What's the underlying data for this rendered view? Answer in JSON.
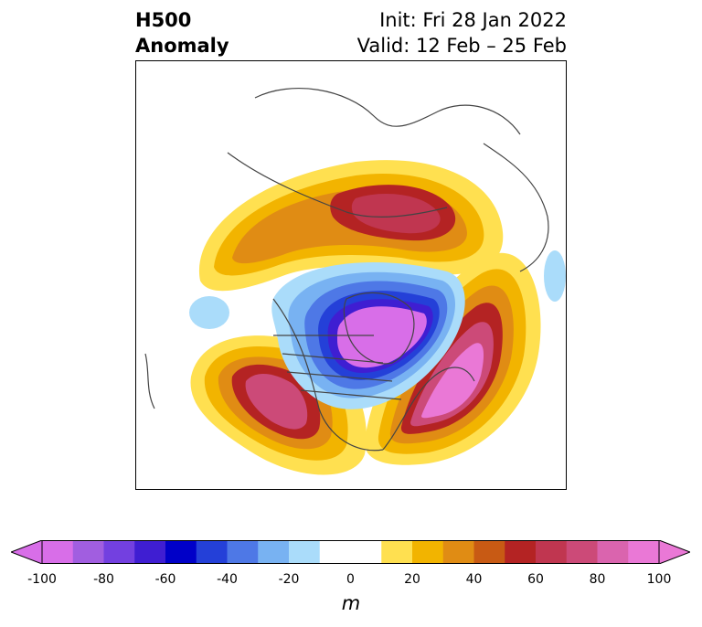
{
  "title": {
    "left_line1": "H500",
    "left_line2": "Anomaly",
    "right_line1": "Init: Fri 28 Jan 2022",
    "right_line2": "Valid: 12 Feb – 25 Feb"
  },
  "colorbar": {
    "unit": "m",
    "extend": "both",
    "min": -100,
    "max": 100,
    "ticks": [
      "-100",
      "-80",
      "-60",
      "-40",
      "-20",
      "0",
      "20",
      "40",
      "60",
      "80",
      "100"
    ],
    "levels": [
      -100,
      -90,
      -80,
      -70,
      -60,
      -50,
      -40,
      -30,
      -20,
      -10,
      10,
      20,
      30,
      40,
      50,
      60,
      70,
      80,
      90,
      100
    ],
    "colors": [
      "#d86ee8",
      "#a15ee0",
      "#7340e0",
      "#3f1ed2",
      "#0000c8",
      "#2440d8",
      "#4e78e6",
      "#78b2f2",
      "#aadcfa",
      "#ffffff",
      "#ffe050",
      "#f2b400",
      "#e08c14",
      "#c85a14",
      "#b42323",
      "#c03650",
      "#cc4a78",
      "#da64ae",
      "#ea78d6"
    ]
  },
  "map": {
    "projection": "polar-stereographic-north",
    "field": "500 hPa geopotential height anomaly",
    "features": [
      {
        "name": "positive anomaly over eastern Siberia / Chukotka",
        "peak": 60
      },
      {
        "name": "positive anomaly over western North America",
        "peak": 80
      },
      {
        "name": "positive anomaly over North Atlantic",
        "peak": 100
      },
      {
        "name": "negative anomaly over Greenland / Canadian Arctic",
        "peak": -100
      },
      {
        "name": "weak negative anomaly over Gulf of Alaska",
        "peak": -20
      },
      {
        "name": "weak negative anomaly over Scandinavia",
        "peak": -20
      }
    ]
  }
}
